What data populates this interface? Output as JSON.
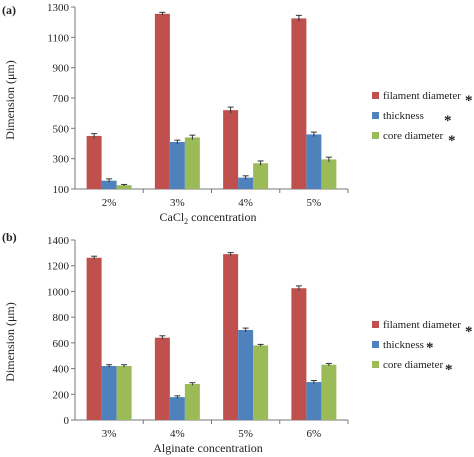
{
  "chart_data": [
    {
      "type": "bar",
      "panel_label": "(a)",
      "categories": [
        "2%",
        "3%",
        "4%",
        "5%"
      ],
      "xlabel": "CaCl2 concentration",
      "xlabel_base": "CaCl",
      "xlabel_sub": "2",
      "xlabel_rest": " concentration",
      "ylabel": "Dimension (μm)",
      "ylim": [
        100,
        1300
      ],
      "yticks": [
        100,
        300,
        500,
        700,
        900,
        1100,
        1300
      ],
      "series": [
        {
          "name": "filament diameter",
          "color": "#c0504d",
          "values": [
            450,
            1255,
            620,
            1225
          ],
          "errors": [
            15,
            10,
            20,
            20
          ],
          "marker": "*"
        },
        {
          "name": "thickness",
          "color": "#4f81bd",
          "values": [
            155,
            410,
            175,
            460
          ],
          "errors": [
            12,
            12,
            12,
            15
          ],
          "marker": "*"
        },
        {
          "name": "core diameter",
          "color": "#9bbb59",
          "values": [
            125,
            440,
            270,
            295
          ],
          "errors": [
            5,
            15,
            15,
            15
          ],
          "marker": "*"
        }
      ],
      "legend_position": "right",
      "grid": false
    },
    {
      "type": "bar",
      "panel_label": "(b)",
      "categories": [
        "3%",
        "4%",
        "5%",
        "6%"
      ],
      "xlabel": "Alginate concentration",
      "ylabel": "Dimension (μm)",
      "ylim": [
        0,
        1400
      ],
      "yticks": [
        0,
        200,
        400,
        600,
        800,
        1000,
        1200,
        1400
      ],
      "series": [
        {
          "name": "filament diameter",
          "color": "#c0504d",
          "values": [
            1262,
            640,
            1290,
            1025
          ],
          "errors": [
            12,
            15,
            12,
            18
          ],
          "marker": "*"
        },
        {
          "name": "thickness",
          "color": "#4f81bd",
          "values": [
            420,
            178,
            700,
            295
          ],
          "errors": [
            10,
            10,
            15,
            12
          ],
          "marker": "*"
        },
        {
          "name": "core diameter",
          "color": "#9bbb59",
          "values": [
            420,
            280,
            580,
            430
          ],
          "errors": [
            10,
            10,
            8,
            10
          ],
          "marker": "*"
        }
      ],
      "legend_position": "right",
      "grid": false
    }
  ]
}
